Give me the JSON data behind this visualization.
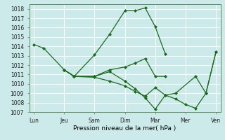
{
  "title": "",
  "xlabel": "Pression niveau de la mer( hPa )",
  "bg_color": "#cceaea",
  "line_color": "#1a6b1a",
  "grid_color": "#ffffff",
  "ylim": [
    1007,
    1018.5
  ],
  "yticks": [
    1007,
    1008,
    1009,
    1010,
    1011,
    1012,
    1013,
    1014,
    1015,
    1016,
    1017,
    1018
  ],
  "xtick_labels": [
    "Lun",
    "Jeu",
    "Sam",
    "Dim",
    "Mar",
    "Mer",
    "Ven"
  ],
  "xtick_positions": [
    0,
    1,
    2,
    3,
    4,
    5,
    6
  ],
  "series": [
    {
      "x": [
        0,
        0.33,
        1.0,
        1.33,
        2.0,
        2.5,
        3.0,
        3.33,
        3.67,
        4.0,
        4.33,
        4.67
      ],
      "y": [
        1014.2,
        1013.8,
        1011.5,
        1010.8,
        1013.1,
        1015.3,
        1017.8,
        1017.8,
        1018.1,
        1016.1,
        1013.2,
        null
      ]
    },
    {
      "x": [
        1.0,
        1.33,
        2.0,
        2.5,
        3.0,
        3.33,
        3.67,
        4.0,
        4.33,
        4.67,
        5.33,
        5.67,
        6.0
      ],
      "y": [
        1011.5,
        1010.8,
        1010.8,
        1011.3,
        1010.3,
        1009.5,
        1008.5,
        1007.3,
        1008.8,
        1009.0,
        1010.8,
        1009.0,
        1013.4
      ]
    },
    {
      "x": [
        1.0,
        1.33,
        2.0,
        2.5,
        3.0,
        3.33,
        3.67,
        4.0,
        4.33,
        4.67,
        5.33
      ],
      "y": [
        1011.5,
        1010.8,
        1010.8,
        1011.5,
        1011.8,
        1012.2,
        1012.7,
        1010.8,
        1010.8,
        null,
        null
      ]
    },
    {
      "x": [
        1.0,
        1.33,
        2.0,
        2.5,
        3.0,
        3.33,
        3.67,
        4.0,
        4.33,
        4.67,
        5.0,
        5.33,
        5.67,
        6.0
      ],
      "y": [
        1011.5,
        1010.8,
        1010.7,
        1010.3,
        1009.8,
        1009.2,
        1008.7,
        1009.6,
        1008.8,
        1008.4,
        1007.8,
        1007.4,
        1009.0,
        1013.4
      ]
    }
  ]
}
